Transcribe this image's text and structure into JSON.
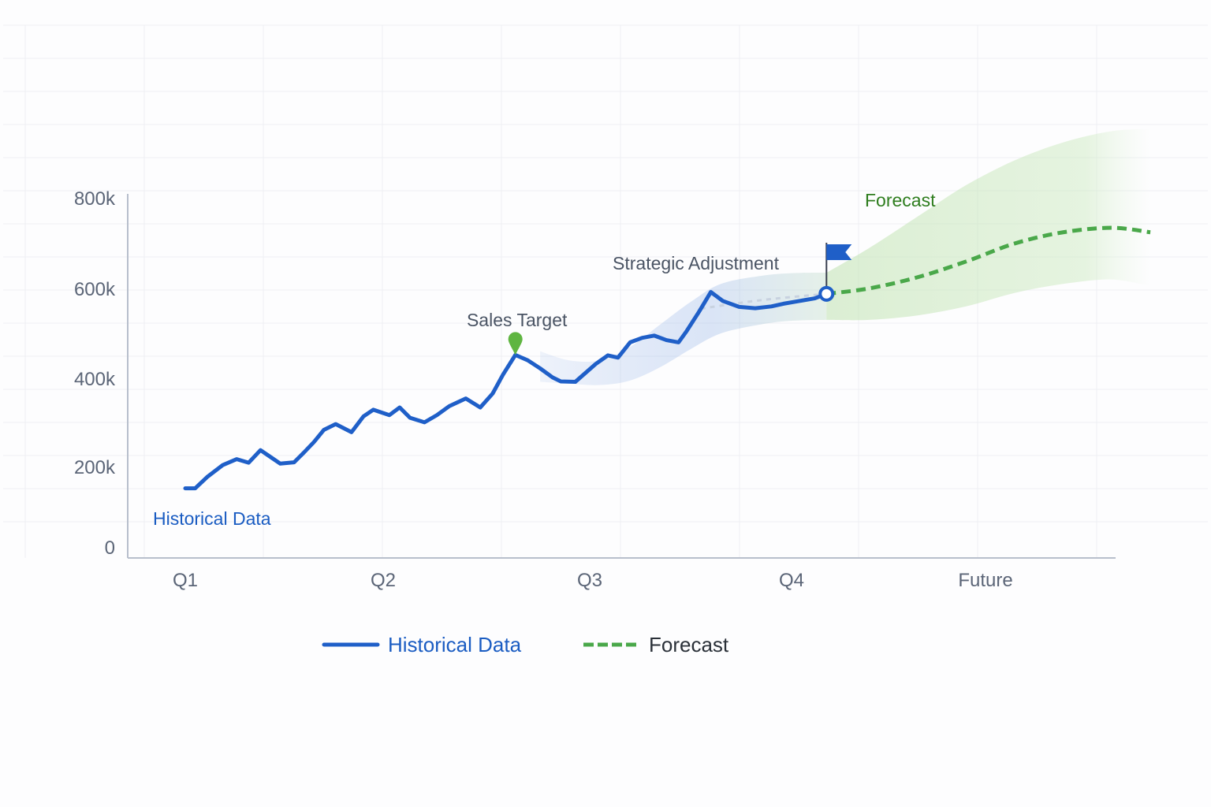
{
  "chart_data": {
    "type": "line",
    "title": "",
    "xlabel": "",
    "ylabel": "",
    "categories": [
      "Q1",
      "Q2",
      "Q3",
      "Q4",
      "Future"
    ],
    "y_ticks": [
      "0",
      "200k",
      "400k",
      "600k",
      "800k"
    ],
    "ylim": [
      0,
      800000
    ],
    "grid": true,
    "legend_position": "bottom-center",
    "series": [
      {
        "name": "Historical Data",
        "style": "solid",
        "color": "#1f5fc8",
        "x": [
          0.0,
          0.05,
          0.11,
          0.19,
          0.26,
          0.32,
          0.38,
          0.43,
          0.48,
          0.55,
          0.6,
          0.65,
          0.7,
          0.76,
          0.84,
          0.9,
          0.95,
          1.03,
          1.08,
          1.13,
          1.2,
          1.26,
          1.32,
          1.4,
          1.47,
          1.53,
          1.58,
          1.64,
          1.7,
          1.76,
          1.82,
          1.86,
          1.93,
          2.03,
          2.09,
          2.14,
          2.2,
          2.26,
          2.32,
          2.38,
          2.44,
          2.48,
          2.54,
          2.6,
          2.66,
          2.74,
          2.82,
          2.9,
          2.96,
          3.04,
          3.12,
          3.18
        ],
        "values": [
          155000,
          155000,
          180000,
          207000,
          220000,
          212000,
          240000,
          225000,
          210000,
          213000,
          235000,
          258000,
          285000,
          298000,
          280000,
          315000,
          330000,
          318000,
          335000,
          312000,
          302000,
          318000,
          338000,
          355000,
          335000,
          366000,
          408000,
          452000,
          440000,
          422000,
          402000,
          393000,
          392000,
          432000,
          451000,
          446000,
          480000,
          490000,
          495000,
          485000,
          480000,
          505000,
          547000,
          592000,
          572000,
          559000,
          556000,
          560000,
          566000,
          572000,
          578000,
          588000
        ]
      },
      {
        "name": "Forecast",
        "style": "dashed",
        "color": "#4aa84a",
        "x": [
          3.18,
          3.4,
          3.65,
          3.9,
          4.15,
          4.4,
          4.65,
          4.85
        ],
        "values": [
          588000,
          600000,
          625000,
          660000,
          700000,
          725000,
          735000,
          725000
        ],
        "band_upper": [
          635000,
          690000,
          760000,
          830000,
          885000,
          925000,
          950000,
          955000
        ],
        "band_lower": [
          530000,
          530000,
          540000,
          560000,
          590000,
          610000,
          620000,
          605000
        ]
      }
    ],
    "confidence_band_historical": {
      "x": [
        1.76,
        1.9,
        2.05,
        2.2,
        2.35,
        2.5,
        2.65,
        2.85,
        3.0,
        3.18
      ],
      "upper": [
        460000,
        440000,
        440000,
        470000,
        520000,
        570000,
        610000,
        628000,
        634000,
        635000
      ],
      "lower": [
        392000,
        388000,
        385000,
        395000,
        425000,
        465000,
        500000,
        520000,
        528000,
        530000
      ]
    },
    "annotations": [
      {
        "label": "Sales Target",
        "marker": "pin",
        "x": 1.64,
        "y": 452000
      },
      {
        "label": "Strategic Adjustment",
        "marker": "flag",
        "x": 3.18,
        "y": 588000
      }
    ],
    "inline_labels": [
      "Historical Data",
      "Forecast"
    ],
    "colors": {
      "historical": "#1f5fc8",
      "forecast": "#4aa84a",
      "forecast_text": "#2e7d1e",
      "historical_text": "#1a5cc2",
      "pin": "#5fb541",
      "flag": "#1f5fc8",
      "axis": "#b8bfcc",
      "grid": "#eef0f4",
      "tick_text": "#5b6577"
    }
  }
}
